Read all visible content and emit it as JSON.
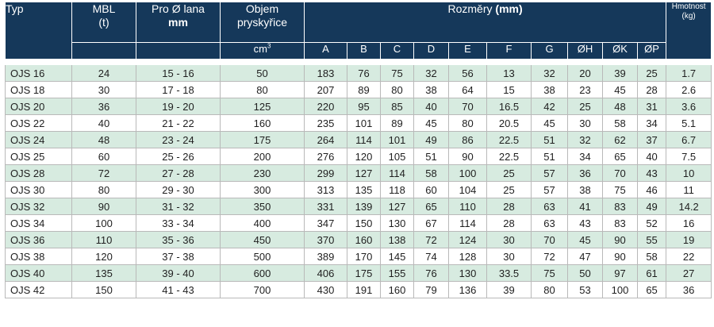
{
  "header": {
    "typ": "Typ",
    "mbl": "MBL",
    "mbl_unit": "(t)",
    "pro_lana": "Pro Ø lana",
    "pro_lana_unit": "mm",
    "objem_1": "Objem",
    "objem_2": "pryskyřice",
    "objem_unit_base": "cm",
    "objem_unit_exp": "3",
    "rozmery": "Rozměry",
    "rozmery_unit": "(mm)",
    "hmotnost": "Hmotnost",
    "hmotnost_unit": "(kg)",
    "dims": [
      "A",
      "B",
      "C",
      "D",
      "E",
      "F",
      "G",
      "ØH",
      "ØK",
      "ØP"
    ]
  },
  "rows": [
    [
      "OJS 16",
      "24",
      "15 - 16",
      "50",
      "183",
      "76",
      "75",
      "32",
      "56",
      "13",
      "32",
      "20",
      "39",
      "25",
      "1.7"
    ],
    [
      "OJS 18",
      "30",
      "17 - 18",
      "80",
      "207",
      "89",
      "80",
      "38",
      "64",
      "15",
      "38",
      "23",
      "45",
      "28",
      "2.6"
    ],
    [
      "OJS 20",
      "36",
      "19 - 20",
      "125",
      "220",
      "95",
      "85",
      "40",
      "70",
      "16.5",
      "42",
      "25",
      "48",
      "31",
      "3.6"
    ],
    [
      "OJS 22",
      "40",
      "21 - 22",
      "160",
      "235",
      "101",
      "89",
      "45",
      "80",
      "20.5",
      "45",
      "30",
      "58",
      "34",
      "5.1"
    ],
    [
      "OJS 24",
      "48",
      "23 - 24",
      "175",
      "264",
      "114",
      "101",
      "49",
      "86",
      "22.5",
      "51",
      "32",
      "62",
      "37",
      "6.7"
    ],
    [
      "OJS 25",
      "60",
      "25 - 26",
      "200",
      "276",
      "120",
      "105",
      "51",
      "90",
      "22.5",
      "51",
      "34",
      "65",
      "40",
      "7.5"
    ],
    [
      "OJS 28",
      "72",
      "27 - 28",
      "230",
      "299",
      "127",
      "114",
      "58",
      "100",
      "25",
      "57",
      "36",
      "70",
      "43",
      "10"
    ],
    [
      "OJS 30",
      "80",
      "29 - 30",
      "300",
      "313",
      "135",
      "118",
      "60",
      "104",
      "25",
      "57",
      "38",
      "75",
      "46",
      "11"
    ],
    [
      "OJS 32",
      "90",
      "31 - 32",
      "350",
      "331",
      "139",
      "127",
      "65",
      "110",
      "28",
      "63",
      "41",
      "83",
      "49",
      "14.2"
    ],
    [
      "OJS 34",
      "100",
      "33 - 34",
      "400",
      "347",
      "150",
      "130",
      "67",
      "114",
      "28",
      "63",
      "43",
      "83",
      "52",
      "16"
    ],
    [
      "OJS 36",
      "110",
      "35 - 36",
      "450",
      "370",
      "160",
      "138",
      "72",
      "124",
      "30",
      "70",
      "45",
      "90",
      "55",
      "19"
    ],
    [
      "OJS 38",
      "120",
      "37 - 38",
      "500",
      "389",
      "170",
      "145",
      "74",
      "128",
      "30",
      "72",
      "47",
      "90",
      "58",
      "22"
    ],
    [
      "OJS 40",
      "135",
      "39 - 40",
      "600",
      "406",
      "175",
      "155",
      "76",
      "130",
      "33.5",
      "75",
      "50",
      "97",
      "61",
      "27"
    ],
    [
      "OJS 42",
      "150",
      "41 - 43",
      "700",
      "430",
      "191",
      "160",
      "79",
      "136",
      "39",
      "80",
      "53",
      "100",
      "65",
      "36"
    ]
  ],
  "colors": {
    "header_bg": "#15385a",
    "header_text": "#ffffff",
    "row_alt_bg": "#d7ebe0",
    "row_bg": "#ffffff"
  }
}
